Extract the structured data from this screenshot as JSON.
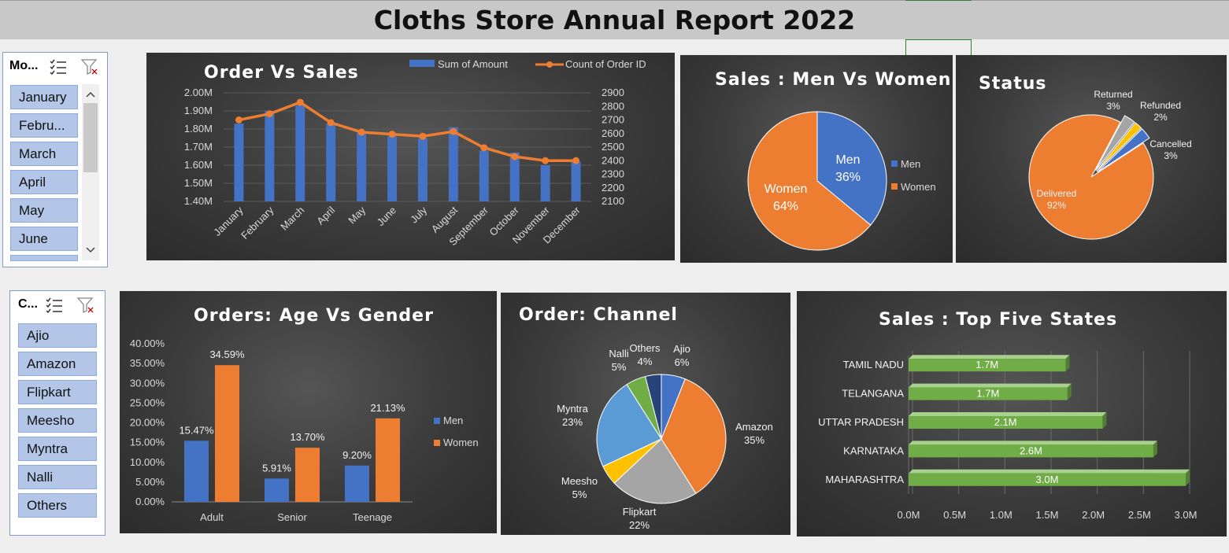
{
  "page": {
    "title": "Cloths Store Annual Report 2022"
  },
  "colors": {
    "men": "#4472c4",
    "women": "#ed7d31",
    "line": "#ed7d31",
    "bar": "#4472c4",
    "green": "#70ad47",
    "gray": "#a5a5a5",
    "yellow": "#ffc000",
    "lightblue": "#5b9bd5",
    "navy": "#264478"
  },
  "slicers": [
    {
      "title": "Mo...",
      "items": [
        "January",
        "Febru...",
        "March",
        "April",
        "May",
        "June"
      ]
    },
    {
      "title": "C...",
      "items": [
        "Ajio",
        "Amazon",
        "Flipkart",
        "Meesho",
        "Myntra",
        "Nalli",
        "Others"
      ]
    }
  ],
  "chart_data": [
    {
      "type": "bar+line",
      "title": "Order Vs Sales",
      "categories": [
        "January",
        "February",
        "March",
        "April",
        "May",
        "June",
        "July",
        "August",
        "September",
        "October",
        "November",
        "December"
      ],
      "series": [
        {
          "name": "Sum of Amount",
          "type": "bar",
          "axis": "left",
          "values": [
            1.83,
            1.9,
            1.93,
            1.83,
            1.78,
            1.76,
            1.75,
            1.81,
            1.68,
            1.67,
            1.6,
            1.62
          ]
        },
        {
          "name": "Count of Order ID",
          "type": "line",
          "axis": "right",
          "values": [
            2700,
            2745,
            2830,
            2680,
            2610,
            2595,
            2580,
            2615,
            2495,
            2430,
            2400,
            2400
          ]
        }
      ],
      "left_ticks": [
        "2.00M",
        "1.90M",
        "1.80M",
        "1.70M",
        "1.60M",
        "1.50M",
        "1.40M"
      ],
      "left_range": [
        1.4,
        2.0
      ],
      "right_ticks": [
        "2900",
        "2800",
        "2700",
        "2600",
        "2500",
        "2400",
        "2300",
        "2200",
        "2100"
      ],
      "right_range": [
        2100,
        2900
      ],
      "legend": "top-right"
    },
    {
      "type": "pie",
      "title": "Sales : Men Vs Women",
      "slices": [
        {
          "label": "Men",
          "pct": 36,
          "display": "36%"
        },
        {
          "label": "Women",
          "pct": 64,
          "display": "64%"
        }
      ],
      "legend": "right"
    },
    {
      "type": "pie",
      "title": "Status",
      "slices": [
        {
          "label": "Cancelled",
          "pct": 3,
          "display": "3%"
        },
        {
          "label": "Delivered",
          "pct": 92,
          "display": "92%"
        },
        {
          "label": "Returned",
          "pct": 3,
          "display": "3%"
        },
        {
          "label": "Refunded",
          "pct": 2,
          "display": "2%"
        }
      ]
    },
    {
      "type": "bar",
      "title": "Orders: Age Vs Gender",
      "categories": [
        "Adult",
        "Senior",
        "Teenage"
      ],
      "series": [
        {
          "name": "Men",
          "values": [
            15.47,
            5.91,
            9.2
          ],
          "labels": [
            "15.47%",
            "5.91%",
            "9.20%"
          ]
        },
        {
          "name": "Women",
          "values": [
            34.59,
            13.7,
            21.13
          ],
          "labels": [
            "34.59%",
            "13.70%",
            "21.13%"
          ]
        }
      ],
      "y_ticks": [
        "40.00%",
        "35.00%",
        "30.00%",
        "25.00%",
        "20.00%",
        "15.00%",
        "10.00%",
        "5.00%",
        "0.00%"
      ],
      "ylim": [
        0,
        40
      ],
      "legend": "right"
    },
    {
      "type": "pie",
      "title": "Order: Channel",
      "slices": [
        {
          "label": "Ajio",
          "pct": 6,
          "display": "6%"
        },
        {
          "label": "Amazon",
          "pct": 35,
          "display": "35%"
        },
        {
          "label": "Flipkart",
          "pct": 22,
          "display": "22%"
        },
        {
          "label": "Meesho",
          "pct": 5,
          "display": "5%"
        },
        {
          "label": "Myntra",
          "pct": 23,
          "display": "23%"
        },
        {
          "label": "Nalli",
          "pct": 5,
          "display": "5%"
        },
        {
          "label": "Others",
          "pct": 4,
          "display": "4%"
        }
      ]
    },
    {
      "type": "bar",
      "orientation": "horizontal",
      "title": "Sales : Top Five States",
      "categories": [
        "TAMIL NADU",
        "TELANGANA",
        "UTTAR PRADESH",
        "KARNATAKA",
        "MAHARASHTRA"
      ],
      "values": [
        1.7,
        1.72,
        2.1,
        2.65,
        3.0
      ],
      "labels": [
        "1.7M",
        "1.7M",
        "2.1M",
        "2.6M",
        "3.0M"
      ],
      "x_ticks": [
        "0.0M",
        "0.5M",
        "1.0M",
        "1.5M",
        "2.0M",
        "2.5M",
        "3.0M"
      ],
      "xlim": [
        0,
        3.0
      ]
    }
  ]
}
